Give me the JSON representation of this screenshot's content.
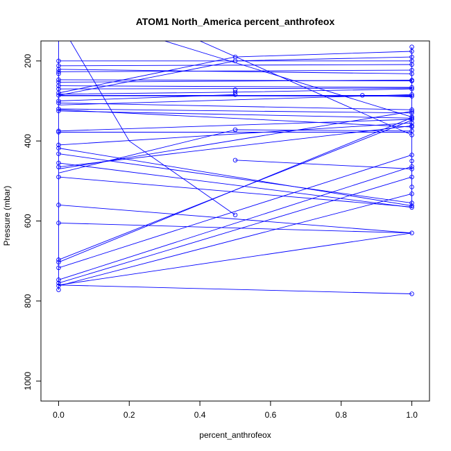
{
  "chart_data": {
    "type": "line",
    "title": "ATOM1 North_America percent_anthrofeox",
    "xlabel": "percent_anthrofeox",
    "ylabel": "Pressure (mbar)",
    "xlim": [
      -0.05,
      1.05
    ],
    "ylim": [
      1050,
      150
    ],
    "y_inverted": true,
    "x_ticks": [
      0.0,
      0.2,
      0.4,
      0.6,
      0.8,
      1.0
    ],
    "x_tick_labels": [
      "0.0",
      "0.2",
      "0.4",
      "0.6",
      "0.8",
      "1.0"
    ],
    "y_ticks": [
      200,
      400,
      600,
      800,
      1000
    ],
    "y_tick_labels": [
      "200",
      "400",
      "600",
      "800",
      "1000"
    ],
    "grid": false,
    "legend": "none",
    "line_color": "#0000ff",
    "marker": "open-circle",
    "series": [
      {
        "x": [
          0,
          0.2,
          0.5
        ],
        "y": [
          100,
          400,
          585
        ]
      },
      {
        "x": [
          0.3,
          1
        ],
        "y": [
          150,
          340
        ]
      },
      {
        "x": [
          0.4,
          1
        ],
        "y": [
          150,
          385
        ]
      },
      {
        "x": [
          0,
          1
        ],
        "y": [
          200,
          200
        ]
      },
      {
        "x": [
          0,
          1
        ],
        "y": [
          212,
          209
        ]
      },
      {
        "x": [
          0,
          1
        ],
        "y": [
          221,
          232
        ]
      },
      {
        "x": [
          0,
          1
        ],
        "y": [
          227,
          223
        ]
      },
      {
        "x": [
          0,
          0.5,
          1
        ],
        "y": [
          280,
          190,
          176
        ]
      },
      {
        "x": [
          0,
          0.5,
          1
        ],
        "y": [
          286,
          200,
          190
        ]
      },
      {
        "x": [
          0,
          1
        ],
        "y": [
          247,
          250
        ]
      },
      {
        "x": [
          0,
          1
        ],
        "y": [
          253,
          248
        ]
      },
      {
        "x": [
          0,
          1
        ],
        "y": [
          262,
          266
        ]
      },
      {
        "x": [
          0,
          1
        ],
        "y": [
          270,
          268
        ]
      },
      {
        "x": [
          0,
          0.5,
          1
        ],
        "y": [
          283,
          278,
          270
        ]
      },
      {
        "x": [
          0,
          1
        ],
        "y": [
          286,
          286
        ]
      },
      {
        "x": [
          0,
          1
        ],
        "y": [
          287,
          288
        ]
      },
      {
        "x": [
          0,
          1
        ],
        "y": [
          310,
          284
        ]
      },
      {
        "x": [
          0,
          0.5
        ],
        "y": [
          300,
          284
        ]
      },
      {
        "x": [
          0,
          1
        ],
        "y": [
          305,
          322
        ]
      },
      {
        "x": [
          0,
          1
        ],
        "y": [
          320,
          330
        ]
      },
      {
        "x": [
          0,
          1
        ],
        "y": [
          322,
          365
        ]
      },
      {
        "x": [
          0,
          1
        ],
        "y": [
          325,
          343
        ]
      },
      {
        "x": [
          0,
          1
        ],
        "y": [
          375,
          346
        ]
      },
      {
        "x": [
          0,
          1
        ],
        "y": [
          378,
          378
        ]
      },
      {
        "x": [
          0,
          1
        ],
        "y": [
          410,
          355
        ]
      },
      {
        "x": [
          0,
          1
        ],
        "y": [
          418,
          562
        ]
      },
      {
        "x": [
          0,
          1
        ],
        "y": [
          432,
          555
        ]
      },
      {
        "x": [
          0,
          1
        ],
        "y": [
          455,
          566
        ]
      },
      {
        "x": [
          0,
          1
        ],
        "y": [
          465,
          362
        ]
      },
      {
        "x": [
          0,
          1
        ],
        "y": [
          470,
          326
        ]
      },
      {
        "x": [
          0,
          1
        ],
        "y": [
          490,
          565
        ]
      },
      {
        "x": [
          0,
          1
        ],
        "y": [
          560,
          630
        ]
      },
      {
        "x": [
          0,
          1
        ],
        "y": [
          605,
          630
        ]
      },
      {
        "x": [
          0,
          1
        ],
        "y": [
          697,
          348
        ]
      },
      {
        "x": [
          0,
          1
        ],
        "y": [
          703,
          342
        ]
      },
      {
        "x": [
          0,
          1
        ],
        "y": [
          717,
          435
        ]
      },
      {
        "x": [
          0,
          1
        ],
        "y": [
          747,
          464
        ]
      },
      {
        "x": [
          0,
          1
        ],
        "y": [
          755,
          490
        ]
      },
      {
        "x": [
          0,
          1
        ],
        "y": [
          762,
          532
        ]
      },
      {
        "x": [
          0,
          1
        ],
        "y": [
          760,
          630
        ]
      },
      {
        "x": [
          0,
          1
        ],
        "y": [
          760,
          782
        ]
      },
      {
        "x": [
          0,
          0.5
        ],
        "y": [
          480,
          372
        ]
      },
      {
        "x": [
          0.5,
          1
        ],
        "y": [
          372,
          375
        ]
      },
      {
        "x": [
          0.5,
          1
        ],
        "y": [
          448,
          470
        ]
      },
      {
        "x": [
          0.86,
          1
        ],
        "y": [
          286,
          290
        ]
      },
      {
        "x": [
          0,
          0
        ],
        "y": [
          150,
          772
        ]
      },
      {
        "x": [
          1,
          1
        ],
        "y": [
          165,
          566
        ]
      }
    ],
    "points": [
      {
        "x": 0,
        "y": 200
      },
      {
        "x": 0,
        "y": 212
      },
      {
        "x": 0,
        "y": 221
      },
      {
        "x": 0,
        "y": 227
      },
      {
        "x": 0,
        "y": 232
      },
      {
        "x": 0,
        "y": 247
      },
      {
        "x": 0,
        "y": 253
      },
      {
        "x": 0,
        "y": 262
      },
      {
        "x": 0,
        "y": 270
      },
      {
        "x": 0,
        "y": 280
      },
      {
        "x": 0,
        "y": 286
      },
      {
        "x": 0,
        "y": 300
      },
      {
        "x": 0,
        "y": 305
      },
      {
        "x": 0,
        "y": 320
      },
      {
        "x": 0,
        "y": 325
      },
      {
        "x": 0,
        "y": 375
      },
      {
        "x": 0,
        "y": 378
      },
      {
        "x": 0,
        "y": 410
      },
      {
        "x": 0,
        "y": 418
      },
      {
        "x": 0,
        "y": 432
      },
      {
        "x": 0,
        "y": 455
      },
      {
        "x": 0,
        "y": 465
      },
      {
        "x": 0,
        "y": 490
      },
      {
        "x": 0,
        "y": 560
      },
      {
        "x": 0,
        "y": 605
      },
      {
        "x": 0,
        "y": 697
      },
      {
        "x": 0,
        "y": 703
      },
      {
        "x": 0,
        "y": 717
      },
      {
        "x": 0,
        "y": 747
      },
      {
        "x": 0,
        "y": 755
      },
      {
        "x": 0,
        "y": 762
      },
      {
        "x": 0,
        "y": 772
      },
      {
        "x": 0.5,
        "y": 190
      },
      {
        "x": 0.5,
        "y": 200
      },
      {
        "x": 0.5,
        "y": 272
      },
      {
        "x": 0.5,
        "y": 278
      },
      {
        "x": 0.5,
        "y": 284
      },
      {
        "x": 0.5,
        "y": 372
      },
      {
        "x": 0.5,
        "y": 448
      },
      {
        "x": 0.5,
        "y": 585
      },
      {
        "x": 0.86,
        "y": 286
      },
      {
        "x": 1,
        "y": 165
      },
      {
        "x": 1,
        "y": 176
      },
      {
        "x": 1,
        "y": 190
      },
      {
        "x": 1,
        "y": 200
      },
      {
        "x": 1,
        "y": 209
      },
      {
        "x": 1,
        "y": 223
      },
      {
        "x": 1,
        "y": 232
      },
      {
        "x": 1,
        "y": 248
      },
      {
        "x": 1,
        "y": 250
      },
      {
        "x": 1,
        "y": 266
      },
      {
        "x": 1,
        "y": 270
      },
      {
        "x": 1,
        "y": 284
      },
      {
        "x": 1,
        "y": 288
      },
      {
        "x": 1,
        "y": 322
      },
      {
        "x": 1,
        "y": 326
      },
      {
        "x": 1,
        "y": 330
      },
      {
        "x": 1,
        "y": 340
      },
      {
        "x": 1,
        "y": 343
      },
      {
        "x": 1,
        "y": 346
      },
      {
        "x": 1,
        "y": 355
      },
      {
        "x": 1,
        "y": 362
      },
      {
        "x": 1,
        "y": 365
      },
      {
        "x": 1,
        "y": 375
      },
      {
        "x": 1,
        "y": 385
      },
      {
        "x": 1,
        "y": 435
      },
      {
        "x": 1,
        "y": 450
      },
      {
        "x": 1,
        "y": 464
      },
      {
        "x": 1,
        "y": 470
      },
      {
        "x": 1,
        "y": 490
      },
      {
        "x": 1,
        "y": 515
      },
      {
        "x": 1,
        "y": 532
      },
      {
        "x": 1,
        "y": 555
      },
      {
        "x": 1,
        "y": 562
      },
      {
        "x": 1,
        "y": 566
      },
      {
        "x": 1,
        "y": 630
      },
      {
        "x": 1,
        "y": 782
      }
    ]
  }
}
